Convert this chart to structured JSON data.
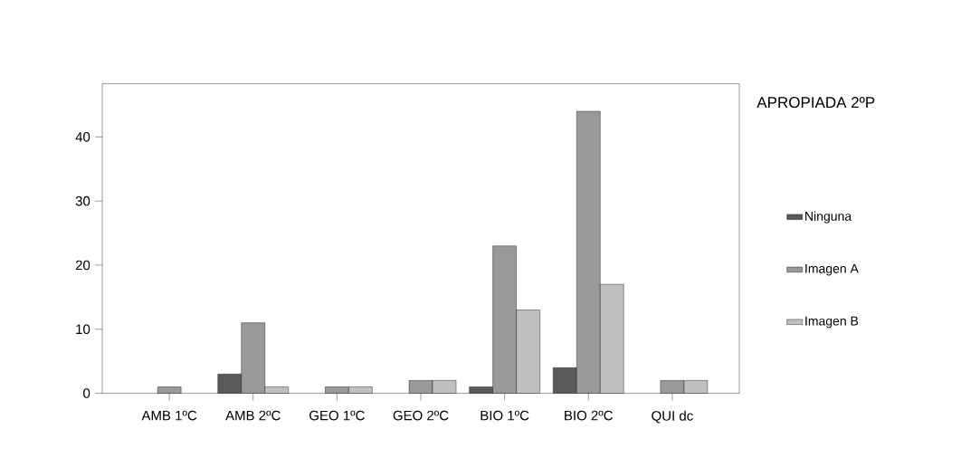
{
  "chart_data": {
    "type": "bar",
    "categories": [
      "AMB 1ºC",
      "AMB 2ºC",
      "GEO 1ºC",
      "GEO 2ºC",
      "BIO 1ºC",
      "BIO 2ºC",
      "QUI dc"
    ],
    "series": [
      {
        "name": "Ninguna",
        "color": "#5a5a5a",
        "values": [
          null,
          3,
          null,
          null,
          1,
          4,
          null
        ]
      },
      {
        "name": "Imagen A",
        "color": "#9a9a9a",
        "values": [
          1,
          11,
          1,
          2,
          23,
          44,
          2
        ]
      },
      {
        "name": "Imagen B",
        "color": "#c0c0c0",
        "values": [
          null,
          1,
          1,
          2,
          13,
          17,
          2
        ]
      }
    ],
    "legend_title": "APROPIADA 2ºP",
    "ylim": [
      0,
      48.3
    ],
    "yticks": [
      0,
      10,
      20,
      30,
      40
    ],
    "legend": "right",
    "grid": false
  }
}
